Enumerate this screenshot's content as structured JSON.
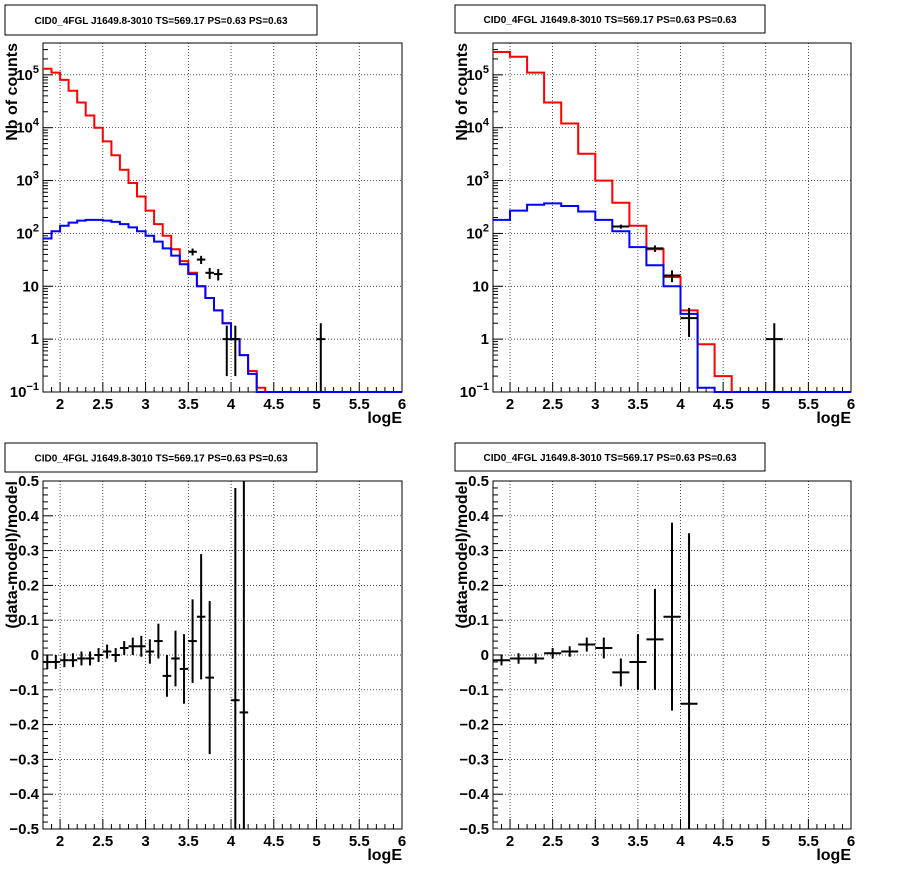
{
  "colors": {
    "data": "#000000",
    "total_model": "#ff0000",
    "source_model": "#0000ff",
    "grid": "#000000"
  },
  "chart_data": [
    {
      "type": "step",
      "title": "CID0_4FGL J1649.8-3010 TS=569.17 PS=0.63 PS=0.63",
      "xlabel": "logE",
      "ylabel": "Nb of counts",
      "xlim": [
        1.8,
        6.0
      ],
      "ylim": [
        0.1,
        400000
      ],
      "yscale": "log",
      "grid": true,
      "xticks": [
        "2",
        "2.5",
        "3",
        "3.5",
        "4",
        "4.5",
        "5",
        "5.5",
        "6"
      ],
      "yticks": [
        "10^-1",
        "1",
        "10",
        "10^2",
        "10^3",
        "10^4",
        "10^5"
      ],
      "bin_edges": [
        1.8,
        1.9,
        2.0,
        2.1,
        2.2,
        2.3,
        2.4,
        2.5,
        2.6,
        2.7,
        2.8,
        2.9,
        3.0,
        3.1,
        3.2,
        3.3,
        3.4,
        3.5,
        3.6,
        3.7,
        3.8,
        3.9,
        4.0,
        4.1,
        4.2,
        4.3,
        4.4,
        4.5,
        6.0
      ],
      "series": [
        {
          "role": "total_model",
          "values": [
            130000,
            110000,
            80000,
            50000,
            30000,
            17000,
            10000,
            5500,
            3000,
            1600,
            900,
            500,
            270,
            150,
            90,
            50,
            30,
            18,
            10,
            6,
            3.5,
            2,
            1,
            0.5,
            0.25,
            0.12,
            0.1,
            0.1
          ]
        },
        {
          "role": "source_model",
          "values": [
            80,
            110,
            140,
            160,
            175,
            180,
            180,
            175,
            165,
            150,
            130,
            110,
            90,
            70,
            52,
            38,
            26,
            17,
            10,
            6,
            3.5,
            2,
            1,
            0.5,
            0.22,
            0.1,
            0.1,
            0.1
          ]
        }
      ],
      "data_points": [
        {
          "x": 3.55,
          "y": 45
        },
        {
          "x": 3.65,
          "y": 32
        },
        {
          "x": 3.75,
          "y": 18
        },
        {
          "x": 3.85,
          "y": 17
        },
        {
          "x": 3.95,
          "y": 1,
          "err": 0.8
        },
        {
          "x": 4.05,
          "y": 1,
          "err": 0.8
        },
        {
          "x": 5.05,
          "y": 1,
          "err": 1.0
        }
      ]
    },
    {
      "type": "step",
      "title": "CID0_4FGL J1649.8-3010 TS=569.17 PS=0.63 PS=0.63",
      "xlabel": "logE",
      "ylabel": "Nb of counts",
      "xlim": [
        1.8,
        6.0
      ],
      "ylim": [
        0.1,
        400000
      ],
      "yscale": "log",
      "grid": true,
      "xticks": [
        "2",
        "2.5",
        "3",
        "3.5",
        "4",
        "4.5",
        "5",
        "5.5",
        "6"
      ],
      "yticks": [
        "10^-1",
        "1",
        "10",
        "10^2",
        "10^3",
        "10^4",
        "10^5"
      ],
      "bin_edges": [
        1.8,
        2.0,
        2.2,
        2.4,
        2.6,
        2.8,
        3.0,
        3.2,
        3.4,
        3.6,
        3.8,
        4.0,
        4.2,
        4.4,
        4.6,
        6.0
      ],
      "series": [
        {
          "role": "total_model",
          "values": [
            270000,
            220000,
            110000,
            30000,
            12000,
            3200,
            1000,
            380,
            140,
            50,
            15,
            3.5,
            0.8,
            0.2,
            0.1
          ]
        },
        {
          "role": "source_model",
          "values": [
            180,
            270,
            350,
            370,
            330,
            260,
            180,
            110,
            55,
            25,
            10,
            3,
            0.12,
            0.1,
            0.1
          ]
        }
      ],
      "data_points": [
        {
          "x": 3.3,
          "y": 135
        },
        {
          "x": 3.7,
          "y": 52
        },
        {
          "x": 3.9,
          "y": 16
        },
        {
          "x": 4.1,
          "y": 2.5,
          "err": 1.4
        },
        {
          "x": 5.1,
          "y": 1,
          "err": 1.0
        }
      ]
    },
    {
      "type": "scatter",
      "title": "CID0_4FGL J1649.8-3010 TS=569.17 PS=0.63 PS=0.63",
      "xlabel": "logE",
      "ylabel": "(data-model)/model",
      "xlim": [
        1.8,
        6.0
      ],
      "ylim": [
        -0.5,
        0.5
      ],
      "grid": true,
      "xticks": [
        "2",
        "2.5",
        "3",
        "3.5",
        "4",
        "4.5",
        "5",
        "5.5",
        "6"
      ],
      "yticks": [
        "-0.5",
        "-0.4",
        "-0.3",
        "-0.2",
        "-0.1",
        "0",
        "0.1",
        "0.2",
        "0.3",
        "0.4",
        "0.5"
      ],
      "bin_width": 0.1,
      "points": [
        {
          "x": 1.85,
          "y": -0.02,
          "err": 0.02
        },
        {
          "x": 1.95,
          "y": -0.02,
          "err": 0.02
        },
        {
          "x": 2.05,
          "y": -0.015,
          "err": 0.02
        },
        {
          "x": 2.15,
          "y": -0.015,
          "err": 0.02
        },
        {
          "x": 2.25,
          "y": -0.01,
          "err": 0.02
        },
        {
          "x": 2.35,
          "y": -0.01,
          "err": 0.02
        },
        {
          "x": 2.45,
          "y": 0.0,
          "err": 0.02
        },
        {
          "x": 2.55,
          "y": 0.01,
          "err": 0.02
        },
        {
          "x": 2.65,
          "y": 0.0,
          "err": 0.02
        },
        {
          "x": 2.75,
          "y": 0.02,
          "err": 0.02
        },
        {
          "x": 2.85,
          "y": 0.025,
          "err": 0.025
        },
        {
          "x": 2.95,
          "y": 0.025,
          "err": 0.03
        },
        {
          "x": 3.05,
          "y": 0.01,
          "err": 0.035
        },
        {
          "x": 3.15,
          "y": 0.04,
          "err": 0.05
        },
        {
          "x": 3.25,
          "y": -0.06,
          "err": 0.06
        },
        {
          "x": 3.35,
          "y": -0.01,
          "err": 0.08
        },
        {
          "x": 3.45,
          "y": -0.04,
          "err": 0.1
        },
        {
          "x": 3.55,
          "y": 0.04,
          "err": 0.12
        },
        {
          "x": 3.65,
          "y": 0.11,
          "err": 0.18
        },
        {
          "x": 3.75,
          "y": -0.065,
          "err": 0.22
        },
        {
          "x": 4.05,
          "y": -0.13,
          "err": 0.61
        },
        {
          "x": 4.15,
          "y": -0.165,
          "err": 0.67
        }
      ]
    },
    {
      "type": "scatter",
      "title": "CID0_4FGL J1649.8-3010 TS=569.17 PS=0.63 PS=0.63",
      "xlabel": "logE",
      "ylabel": "(data-model)/model",
      "xlim": [
        1.8,
        6.0
      ],
      "ylim": [
        -0.5,
        0.5
      ],
      "grid": true,
      "xticks": [
        "2",
        "2.5",
        "3",
        "3.5",
        "4",
        "4.5",
        "5",
        "5.5",
        "6"
      ],
      "yticks": [
        "-0.5",
        "-0.4",
        "-0.3",
        "-0.2",
        "-0.1",
        "0",
        "0.1",
        "0.2",
        "0.3",
        "0.4",
        "0.5"
      ],
      "bin_width": 0.2,
      "points": [
        {
          "x": 1.9,
          "y": -0.015,
          "err": 0.015
        },
        {
          "x": 2.1,
          "y": -0.01,
          "err": 0.015
        },
        {
          "x": 2.3,
          "y": -0.01,
          "err": 0.015
        },
        {
          "x": 2.5,
          "y": 0.005,
          "err": 0.015
        },
        {
          "x": 2.7,
          "y": 0.01,
          "err": 0.015
        },
        {
          "x": 2.9,
          "y": 0.03,
          "err": 0.02
        },
        {
          "x": 3.1,
          "y": 0.02,
          "err": 0.03
        },
        {
          "x": 3.3,
          "y": -0.05,
          "err": 0.04
        },
        {
          "x": 3.5,
          "y": -0.02,
          "err": 0.08
        },
        {
          "x": 3.7,
          "y": 0.045,
          "err": 0.145
        },
        {
          "x": 3.9,
          "y": 0.11,
          "err": 0.27
        },
        {
          "x": 4.1,
          "y": -0.14,
          "err": 0.49
        }
      ]
    }
  ]
}
